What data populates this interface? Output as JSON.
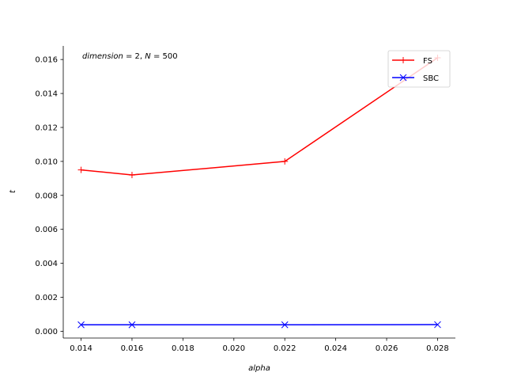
{
  "chart_data": {
    "type": "line",
    "annotation": "dimension = 2, N = 500",
    "xlabel": "alpha",
    "ylabel": "t",
    "x": [
      0.014,
      0.016,
      0.022,
      0.028
    ],
    "xlim": [
      0.0133,
      0.0287
    ],
    "ylim": [
      -0.0004,
      0.0168
    ],
    "xticks": [
      0.014,
      0.016,
      0.018,
      0.02,
      0.022,
      0.024,
      0.026,
      0.028
    ],
    "xtick_labels": [
      "0.014",
      "0.016",
      "0.018",
      "0.020",
      "0.022",
      "0.024",
      "0.026",
      "0.028"
    ],
    "yticks": [
      0.0,
      0.002,
      0.004,
      0.006,
      0.008,
      0.01,
      0.012,
      0.014,
      0.016
    ],
    "ytick_labels": [
      "0.000",
      "0.002",
      "0.004",
      "0.006",
      "0.008",
      "0.010",
      "0.012",
      "0.014",
      "0.016"
    ],
    "legend_position": "top-right",
    "grid": false,
    "series": [
      {
        "name": "FS",
        "color": "#ff0000",
        "marker": "plus",
        "values": [
          0.0095,
          0.0092,
          0.01,
          0.0161
        ]
      },
      {
        "name": "SBC",
        "color": "#0000ff",
        "marker": "x",
        "values": [
          0.00038,
          0.00038,
          0.00038,
          0.00039
        ]
      }
    ]
  }
}
